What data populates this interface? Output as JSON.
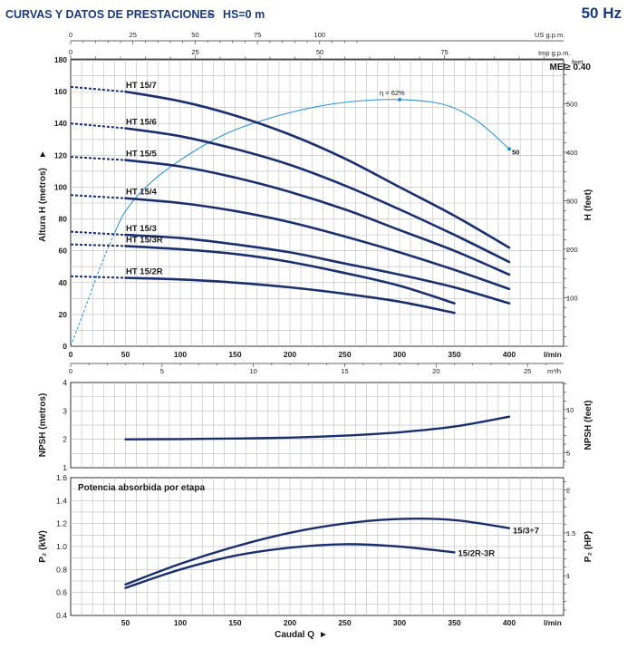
{
  "header": {
    "title": "CURVAS Y DATOS DE PRESTACIONES",
    "dash": "–",
    "hs": "HS=0 m",
    "frequency": "50 Hz"
  },
  "colors": {
    "curve": "#1b2f6e",
    "efficiency": "#2b8fd0",
    "grid": "#bdbdbd",
    "title": "#1b3a7a"
  },
  "axes": {
    "q_lmin": {
      "ticks": [
        50,
        100,
        150,
        200,
        250,
        300,
        350,
        400
      ],
      "unit": "l/min",
      "range": [
        0,
        420
      ],
      "axis_min_label": "0"
    },
    "us_gpm": {
      "ticks": [
        0,
        25,
        50,
        75,
        100
      ],
      "unit": "US g.p.m."
    },
    "imp_gpm": {
      "ticks": [
        0,
        25,
        50,
        75
      ],
      "unit": "Imp g.p.m."
    },
    "m3h": {
      "ticks": [
        0,
        5,
        10,
        15,
        20,
        25
      ],
      "unit": "m³/h"
    },
    "xlabel": "Caudal Q",
    "xlabel_arrow": "►"
  },
  "chart_data": [
    {
      "type": "line",
      "title": "",
      "ylabel": "Altura H (metros)",
      "ylabel_arrow": "►",
      "ylabel_right": "H (feet)",
      "ylim": [
        0,
        180
      ],
      "yticks": [
        0,
        20,
        40,
        60,
        80,
        100,
        120,
        140,
        160,
        180
      ],
      "yticks_right": [
        100,
        200,
        300,
        400,
        500
      ],
      "yunit_right": "feet",
      "annotation": "MEI≥ 0.40",
      "series": [
        {
          "name": "HT 15/7",
          "h0": 163,
          "x": [
            50,
            100,
            150,
            200,
            250,
            300,
            350,
            400
          ],
          "y": [
            160,
            154,
            145,
            133,
            118,
            100,
            82,
            62
          ]
        },
        {
          "name": "HT 15/6",
          "h0": 140,
          "x": [
            50,
            100,
            150,
            200,
            250,
            300,
            350,
            400
          ],
          "y": [
            137,
            132,
            124,
            114,
            101,
            86,
            70,
            53
          ]
        },
        {
          "name": "HT 15/5",
          "h0": 119,
          "x": [
            50,
            100,
            150,
            200,
            250,
            300,
            350,
            400
          ],
          "y": [
            117,
            113,
            106,
            97,
            86,
            73,
            60,
            45
          ]
        },
        {
          "name": "HT 15/4",
          "h0": 95,
          "x": [
            50,
            100,
            150,
            200,
            250,
            300,
            350,
            400
          ],
          "y": [
            93,
            90,
            85,
            78,
            69,
            59,
            48,
            36
          ]
        },
        {
          "name": "HT 15/3",
          "h0": 72,
          "x": [
            50,
            100,
            150,
            200,
            250,
            300,
            350,
            400
          ],
          "y": [
            70,
            68,
            64,
            59,
            52,
            45,
            37,
            27
          ]
        },
        {
          "name": "HT 15/3R",
          "h0": 64,
          "x": [
            50,
            100,
            150,
            200,
            250,
            300,
            350
          ],
          "y": [
            63,
            61,
            58,
            53,
            46,
            38,
            27
          ]
        },
        {
          "name": "HT 15/2R",
          "h0": 44,
          "x": [
            50,
            100,
            150,
            200,
            250,
            300,
            350
          ],
          "y": [
            43,
            42,
            40,
            37,
            33,
            28,
            21
          ]
        }
      ],
      "efficiency": {
        "label": "η = 62%",
        "end_label": "50",
        "x": [
          0,
          10,
          20,
          30,
          40,
          50,
          70,
          100,
          140,
          180,
          220,
          260,
          300,
          340,
          370,
          400
        ],
        "y": [
          0,
          18,
          37,
          55,
          71,
          85,
          101,
          117,
          133,
          143,
          150,
          154,
          155,
          152,
          142,
          124
        ]
      }
    },
    {
      "type": "line",
      "ylabel": "NPSH (metros)",
      "ylabel_right": "NPSH (feet)",
      "ylim": [
        1,
        4
      ],
      "yticks": [
        1,
        2,
        3,
        4
      ],
      "yticks_right": [
        5,
        10
      ],
      "series": [
        {
          "name": "NPSH",
          "x": [
            50,
            100,
            150,
            200,
            250,
            300,
            350,
            400
          ],
          "y": [
            2.0,
            2.01,
            2.03,
            2.06,
            2.13,
            2.25,
            2.45,
            2.8
          ]
        }
      ]
    },
    {
      "type": "line",
      "title": "Potencia absorbida por etapa",
      "ylabel": "P₂ (kW)",
      "ylabel_right": "P₂ (HP)",
      "ylim": [
        0.4,
        1.6
      ],
      "yticks": [
        0.4,
        0.6,
        0.8,
        1.0,
        1.2,
        1.4,
        1.6
      ],
      "yticks_right": [
        1,
        1.5,
        2
      ],
      "series": [
        {
          "name": "15/3÷7",
          "x": [
            50,
            100,
            150,
            200,
            250,
            300,
            350,
            400
          ],
          "y": [
            0.67,
            0.85,
            1.0,
            1.12,
            1.2,
            1.24,
            1.23,
            1.16
          ]
        },
        {
          "name": "15/2R-3R",
          "x": [
            50,
            100,
            150,
            200,
            250,
            300,
            350
          ],
          "y": [
            0.64,
            0.8,
            0.92,
            0.99,
            1.02,
            1.0,
            0.95
          ]
        }
      ]
    }
  ]
}
